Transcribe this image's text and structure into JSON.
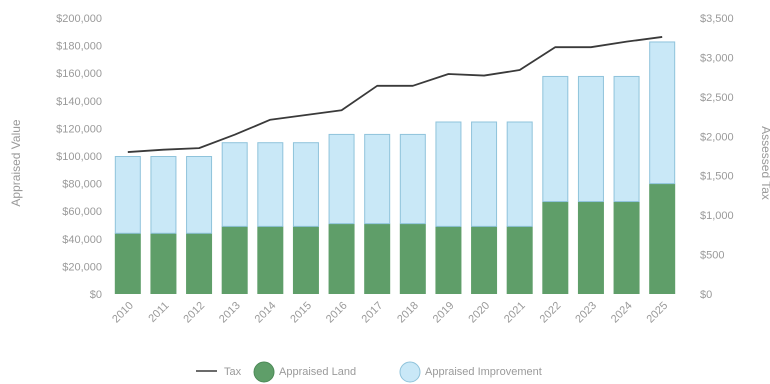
{
  "chart_data": {
    "type": "bar",
    "stacked": true,
    "categories": [
      "2010",
      "2011",
      "2012",
      "2013",
      "2014",
      "2015",
      "2016",
      "2017",
      "2018",
      "2019",
      "2020",
      "2021",
      "2022",
      "2023",
      "2024",
      "2025"
    ],
    "series": [
      {
        "name": "Appraised Land",
        "kind": "bar",
        "axis": "left",
        "color": "#5f9e69",
        "values": [
          44000,
          44000,
          44000,
          49000,
          49000,
          49000,
          51000,
          51000,
          51000,
          49000,
          49000,
          49000,
          67000,
          67000,
          67000,
          80000
        ]
      },
      {
        "name": "Appraised Improvement",
        "kind": "bar",
        "axis": "left",
        "color": "#c9e8f7",
        "values": [
          56000,
          56000,
          56000,
          61000,
          61000,
          61000,
          65000,
          65000,
          65000,
          76000,
          76000,
          76000,
          91000,
          91000,
          91000,
          103000
        ]
      },
      {
        "name": "Tax",
        "kind": "line",
        "axis": "right",
        "color": "#3a3a3a",
        "values": [
          1800,
          1830,
          1850,
          2020,
          2210,
          2270,
          2330,
          2640,
          2640,
          2790,
          2770,
          2840,
          3130,
          3130,
          3200,
          3260
        ]
      }
    ],
    "ylabel": "Appraised Value",
    "y2label": "Assessed Tax",
    "ylim": [
      0,
      200000
    ],
    "y2lim": [
      0,
      3500
    ],
    "yticks": [
      "$0",
      "$20,000",
      "$40,000",
      "$60,000",
      "$80,000",
      "$100,000",
      "$120,000",
      "$140,000",
      "$160,000",
      "$180,000",
      "$200,000"
    ],
    "y2ticks": [
      "$0",
      "$500",
      "$1,000",
      "$1,500",
      "$2,000",
      "$2,500",
      "$3,000",
      "$3,500"
    ],
    "grid": false,
    "legend_position": "bottom"
  },
  "legend": {
    "tax": "Tax",
    "land": "Appraised Land",
    "improvement": "Appraised Improvement"
  },
  "colors": {
    "land_fill": "#5f9e69",
    "land_stroke": "#4c8a57",
    "improvement_fill": "#c9e8f7",
    "improvement_stroke": "#8fc3db",
    "tax_line": "#3a3a3a",
    "text": "#9a9a9a"
  }
}
